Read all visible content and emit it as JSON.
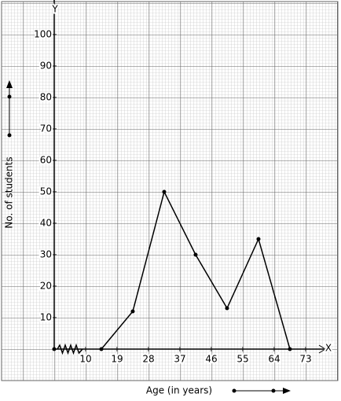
{
  "chart_data": {
    "type": "line",
    "x_axis_name": "X",
    "y_axis_name": "Y",
    "x_label": "Age (in years)",
    "y_label": "No. of students",
    "x": [
      14.5,
      23.5,
      32.5,
      41.5,
      50.5,
      59.5,
      68.5
    ],
    "series": [
      {
        "color": "#000000",
        "values": [
          0,
          12,
          50,
          30,
          13,
          35,
          0
        ]
      }
    ],
    "xlim": [
      1,
      77.5
    ],
    "xticks": [
      10,
      19,
      28,
      37,
      46,
      55,
      64,
      73
    ],
    "ylim": [
      0,
      108
    ],
    "yticks": [
      10,
      20,
      30,
      40,
      50,
      60,
      70,
      80,
      90,
      100
    ],
    "grid": true
  }
}
